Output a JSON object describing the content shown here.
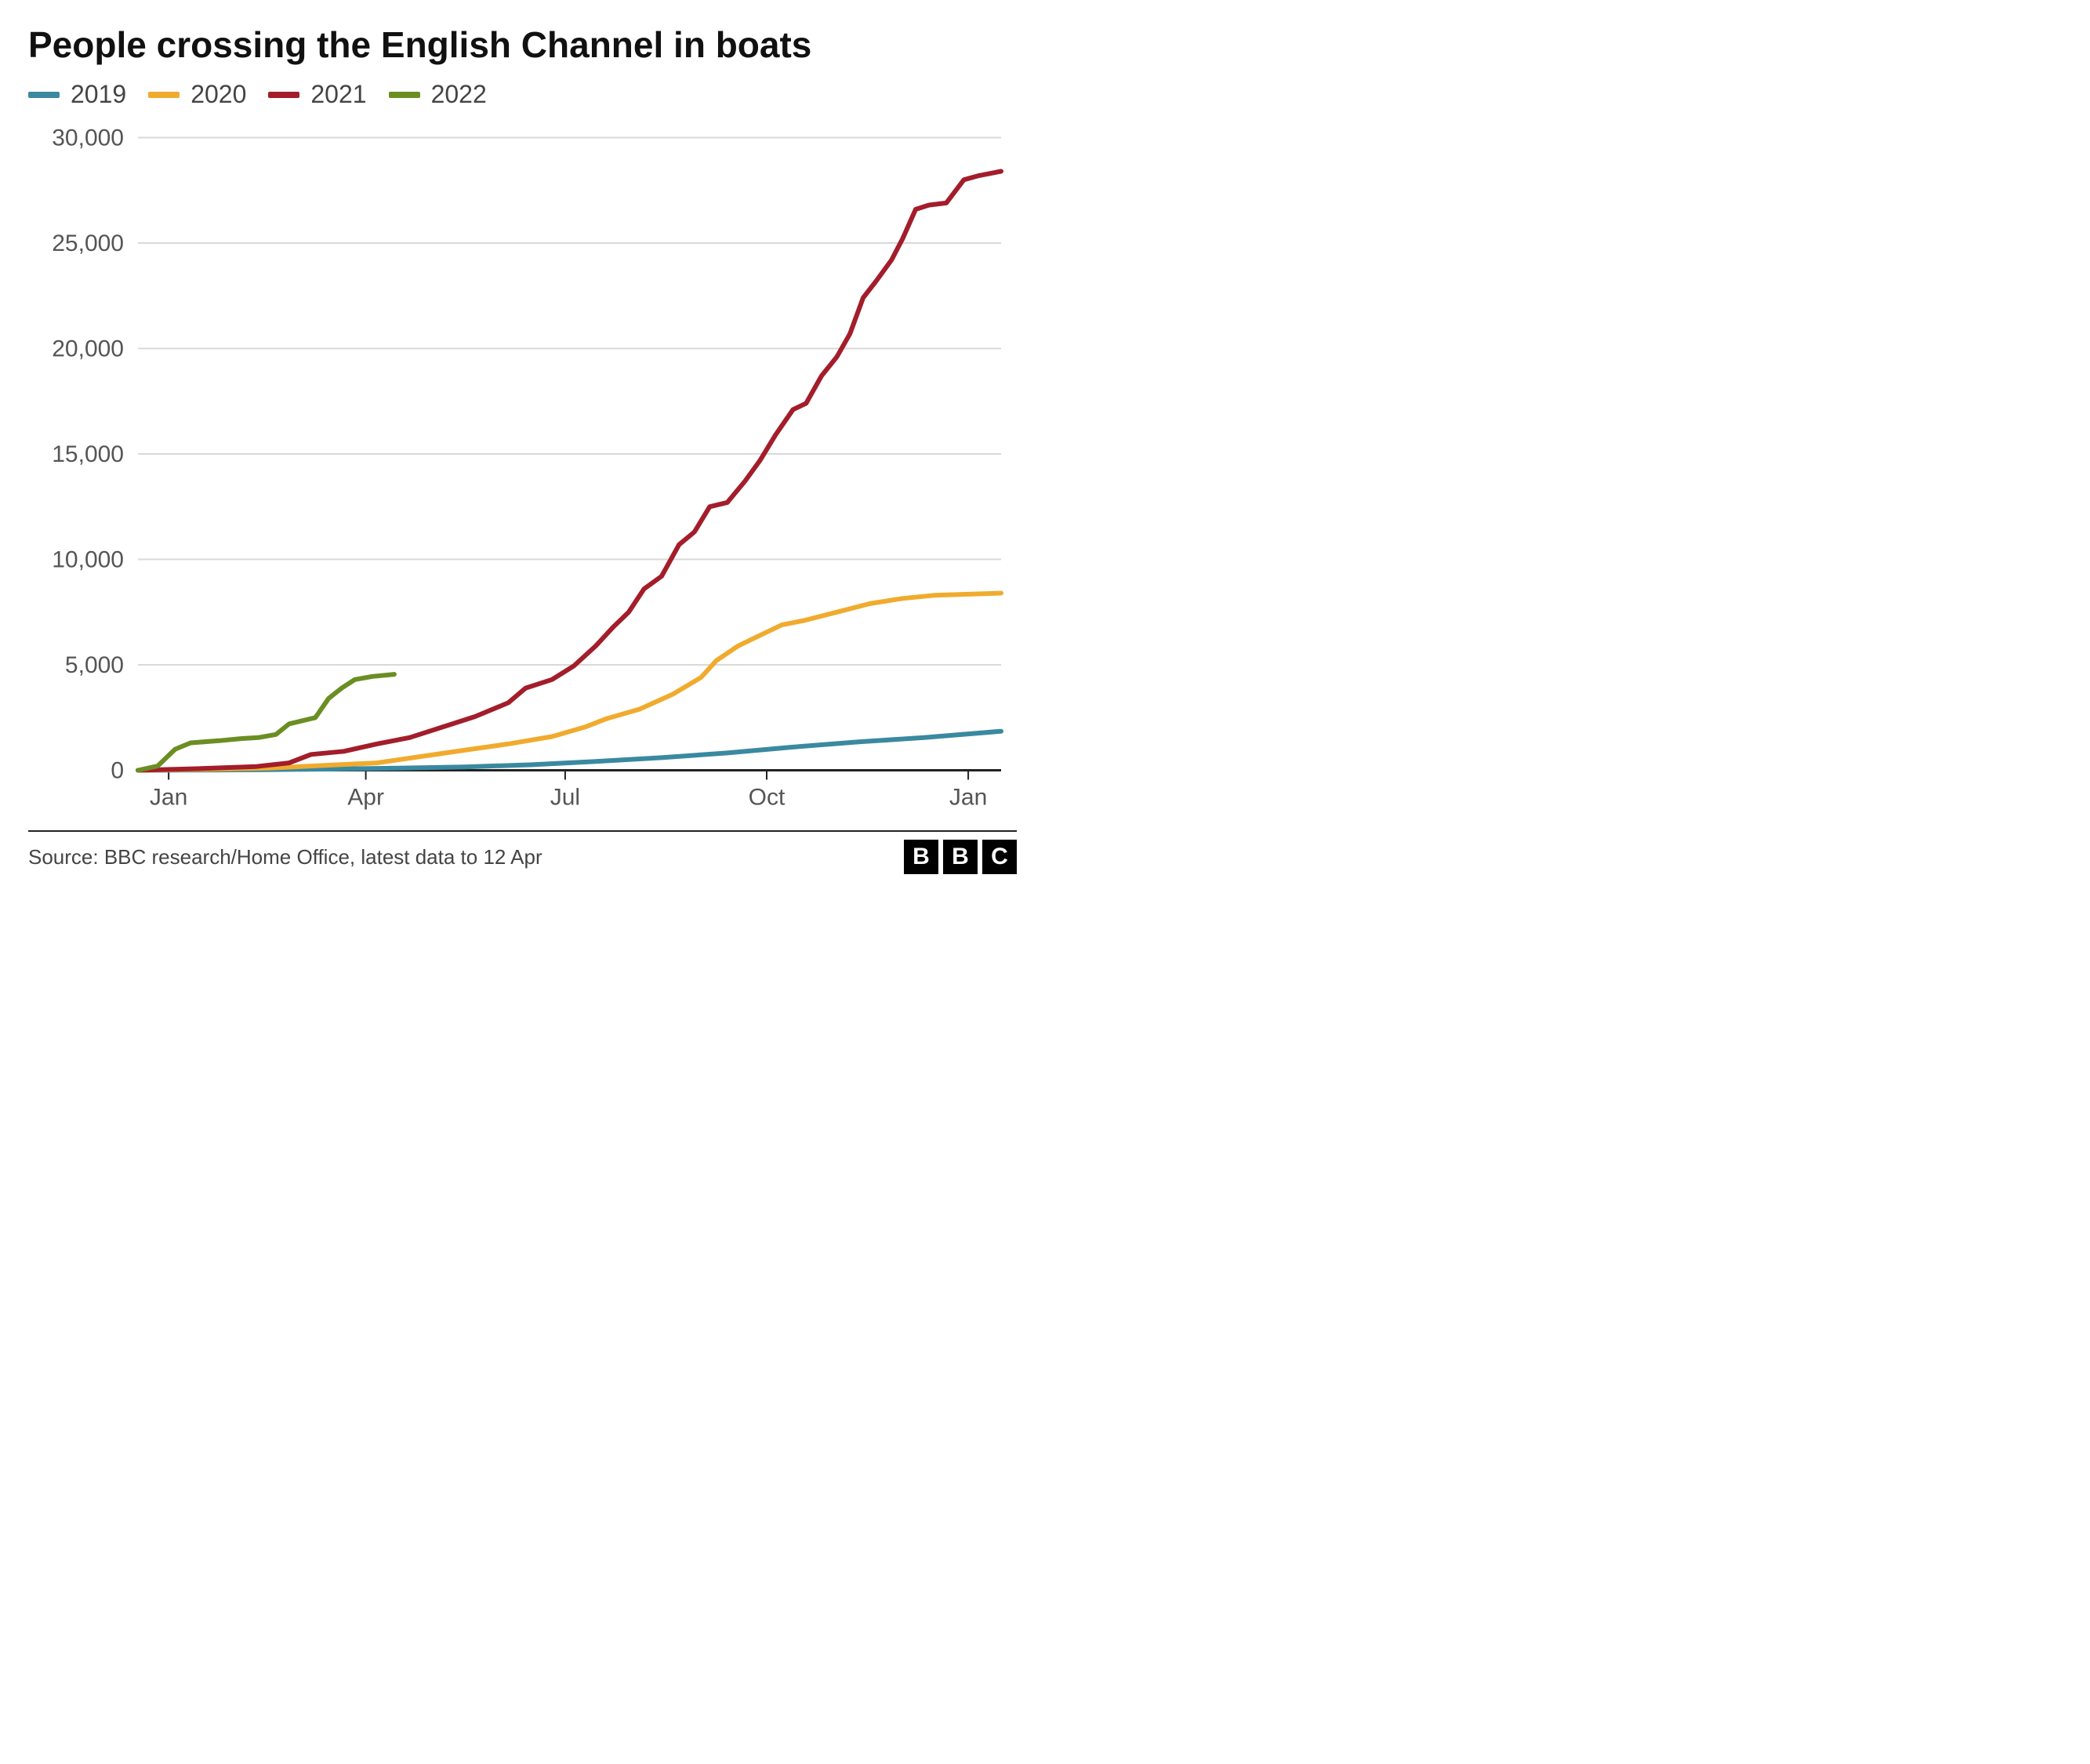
{
  "title": "People crossing the English Channel in boats",
  "title_fontsize": 46,
  "source": "Source: BBC research/Home Office, latest data to 12 Apr",
  "source_fontsize": 26,
  "logo_letters": [
    "B",
    "B",
    "C"
  ],
  "chart": {
    "type": "line",
    "background_color": "#ffffff",
    "grid_color": "#d9d9d9",
    "axis_color": "#222222",
    "ylim": [
      0,
      30000
    ],
    "y_ticks": [
      0,
      5000,
      10000,
      15000,
      20000,
      25000,
      30000
    ],
    "y_tick_labels": [
      "0",
      "5,000",
      "10,000",
      "15,000",
      "20,000",
      "25,000",
      "30,000"
    ],
    "x_domain": [
      1,
      395
    ],
    "x_ticks": [
      {
        "pos": 15,
        "label": "Jan"
      },
      {
        "pos": 105,
        "label": "Apr"
      },
      {
        "pos": 196,
        "label": "Jul"
      },
      {
        "pos": 288,
        "label": "Oct"
      },
      {
        "pos": 380,
        "label": "Jan"
      }
    ],
    "axis_fontsize": 30,
    "legend_fontsize": 32,
    "line_width": 6,
    "series": [
      {
        "name": "2019",
        "color": "#3a89a0",
        "points": [
          [
            1,
            0
          ],
          [
            30,
            10
          ],
          [
            60,
            30
          ],
          [
            90,
            60
          ],
          [
            120,
            100
          ],
          [
            150,
            160
          ],
          [
            180,
            260
          ],
          [
            210,
            420
          ],
          [
            240,
            600
          ],
          [
            270,
            820
          ],
          [
            300,
            1100
          ],
          [
            330,
            1350
          ],
          [
            360,
            1550
          ],
          [
            395,
            1850
          ]
        ]
      },
      {
        "name": "2020",
        "color": "#f0ab2e",
        "points": [
          [
            1,
            0
          ],
          [
            30,
            40
          ],
          [
            60,
            100
          ],
          [
            90,
            250
          ],
          [
            110,
            350
          ],
          [
            130,
            650
          ],
          [
            150,
            950
          ],
          [
            170,
            1250
          ],
          [
            190,
            1600
          ],
          [
            205,
            2050
          ],
          [
            215,
            2450
          ],
          [
            230,
            2900
          ],
          [
            245,
            3600
          ],
          [
            258,
            4400
          ],
          [
            265,
            5200
          ],
          [
            275,
            5900
          ],
          [
            285,
            6400
          ],
          [
            295,
            6900
          ],
          [
            305,
            7100
          ],
          [
            320,
            7500
          ],
          [
            335,
            7900
          ],
          [
            350,
            8150
          ],
          [
            365,
            8300
          ],
          [
            395,
            8400
          ]
        ]
      },
      {
        "name": "2021",
        "color": "#a31d2a",
        "points": [
          [
            1,
            0
          ],
          [
            30,
            80
          ],
          [
            55,
            180
          ],
          [
            70,
            350
          ],
          [
            80,
            750
          ],
          [
            95,
            900
          ],
          [
            110,
            1250
          ],
          [
            125,
            1550
          ],
          [
            140,
            2050
          ],
          [
            155,
            2550
          ],
          [
            170,
            3200
          ],
          [
            178,
            3900
          ],
          [
            190,
            4300
          ],
          [
            200,
            4950
          ],
          [
            210,
            5900
          ],
          [
            218,
            6800
          ],
          [
            225,
            7500
          ],
          [
            232,
            8600
          ],
          [
            240,
            9200
          ],
          [
            248,
            10700
          ],
          [
            255,
            11300
          ],
          [
            262,
            12500
          ],
          [
            270,
            12700
          ],
          [
            278,
            13700
          ],
          [
            285,
            14700
          ],
          [
            292,
            15900
          ],
          [
            300,
            17100
          ],
          [
            306,
            17400
          ],
          [
            313,
            18700
          ],
          [
            320,
            19600
          ],
          [
            326,
            20700
          ],
          [
            332,
            22400
          ],
          [
            338,
            23200
          ],
          [
            345,
            24200
          ],
          [
            350,
            25200
          ],
          [
            356,
            26600
          ],
          [
            362,
            26800
          ],
          [
            370,
            26900
          ],
          [
            378,
            28000
          ],
          [
            385,
            28200
          ],
          [
            395,
            28400
          ]
        ]
      },
      {
        "name": "2022",
        "color": "#6b8e23",
        "points": [
          [
            1,
            0
          ],
          [
            10,
            200
          ],
          [
            18,
            1000
          ],
          [
            25,
            1300
          ],
          [
            38,
            1400
          ],
          [
            48,
            1500
          ],
          [
            56,
            1550
          ],
          [
            64,
            1700
          ],
          [
            70,
            2200
          ],
          [
            76,
            2350
          ],
          [
            82,
            2500
          ],
          [
            88,
            3400
          ],
          [
            94,
            3900
          ],
          [
            100,
            4300
          ],
          [
            108,
            4450
          ],
          [
            118,
            4550
          ]
        ]
      }
    ]
  }
}
